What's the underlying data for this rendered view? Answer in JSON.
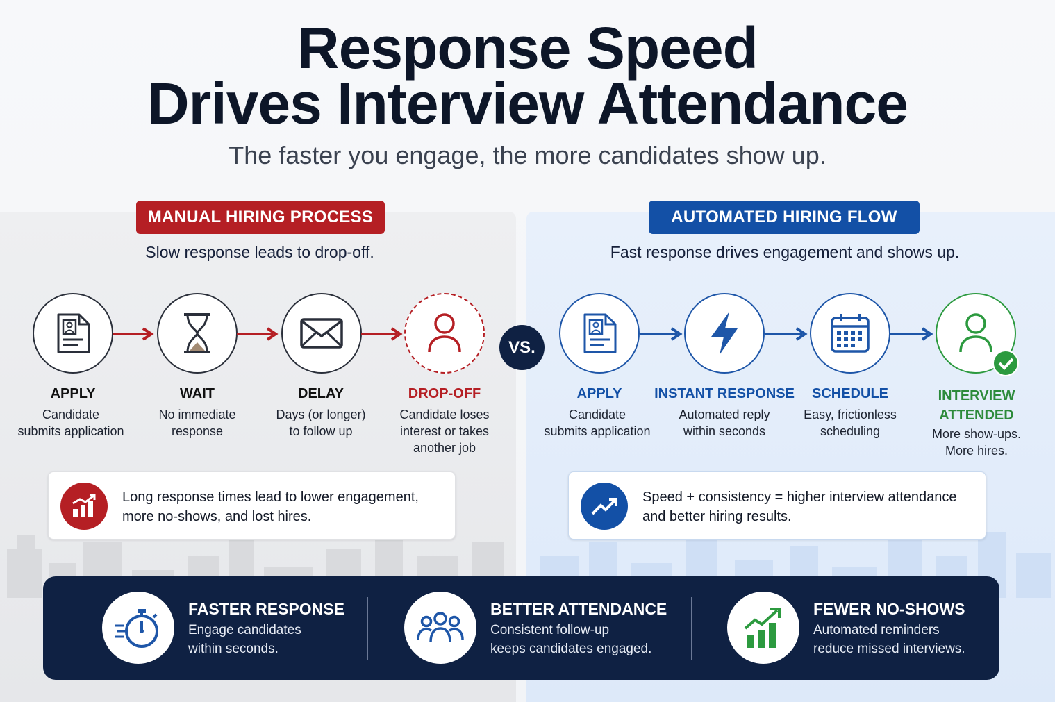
{
  "title": {
    "line1": "Response Speed",
    "line2": "Drives Interview Attendance",
    "subtitle": "The faster you engage, the more candidates show up."
  },
  "manual": {
    "badge": "MANUAL HIRING PROCESS",
    "tagline": "Slow response leads to drop-off.",
    "steps": [
      {
        "title": "APPLY",
        "desc1": "Candidate",
        "desc2": "submits application",
        "desc3": "",
        "icon": "document-icon"
      },
      {
        "title": "WAIT",
        "desc1": "No immediate",
        "desc2": "response",
        "desc3": "",
        "icon": "hourglass-icon"
      },
      {
        "title": "DELAY",
        "desc1": "Days (or longer)",
        "desc2": "to follow up",
        "desc3": "",
        "icon": "envelope-icon"
      },
      {
        "title": "DROP-OFF",
        "desc1": "Candidate loses",
        "desc2": "interest or takes",
        "desc3": "another job",
        "icon": "person-icon"
      }
    ],
    "callout": {
      "line1": "Long response times lead to lower engagement,",
      "line2": "more no-shows, and lost hires.",
      "icon": "bar-chart-icon"
    }
  },
  "vs": "VS.",
  "automated": {
    "badge": "AUTOMATED HIRING FLOW",
    "tagline": "Fast response drives engagement and shows up.",
    "steps": [
      {
        "title": "APPLY",
        "title2": "",
        "desc1": "Candidate",
        "desc2": "submits application",
        "icon": "document-icon"
      },
      {
        "title": "INSTANT RESPONSE",
        "title2": "",
        "desc1": "Automated reply",
        "desc2": "within seconds",
        "icon": "lightning-icon"
      },
      {
        "title": "SCHEDULE",
        "title2": "",
        "desc1": "Easy, frictionless",
        "desc2": "scheduling",
        "icon": "calendar-icon"
      },
      {
        "title": "INTERVIEW",
        "title2": "ATTENDED",
        "desc1": "More show-ups.",
        "desc2": "More hires.",
        "icon": "person-check-icon"
      }
    ],
    "callout": {
      "line1": "Speed + consistency = higher interview attendance",
      "line2": "and better hiring results.",
      "icon": "trend-up-icon"
    }
  },
  "features": [
    {
      "title": "FASTER RESPONSE",
      "desc1": "Engage candidates",
      "desc2": "within seconds.",
      "icon": "stopwatch-icon"
    },
    {
      "title": "BETTER ATTENDANCE",
      "desc1": "Consistent follow-up",
      "desc2": "keeps candidates engaged.",
      "icon": "group-icon"
    },
    {
      "title": "FEWER NO-SHOWS",
      "desc1": "Automated reminders",
      "desc2": "reduce missed interviews.",
      "icon": "growth-chart-icon"
    }
  ],
  "colors": {
    "manual_red": "#b51f24",
    "automated_blue": "#1350a6",
    "attended_green": "#2c9a3f",
    "navy": "#0f2143"
  }
}
